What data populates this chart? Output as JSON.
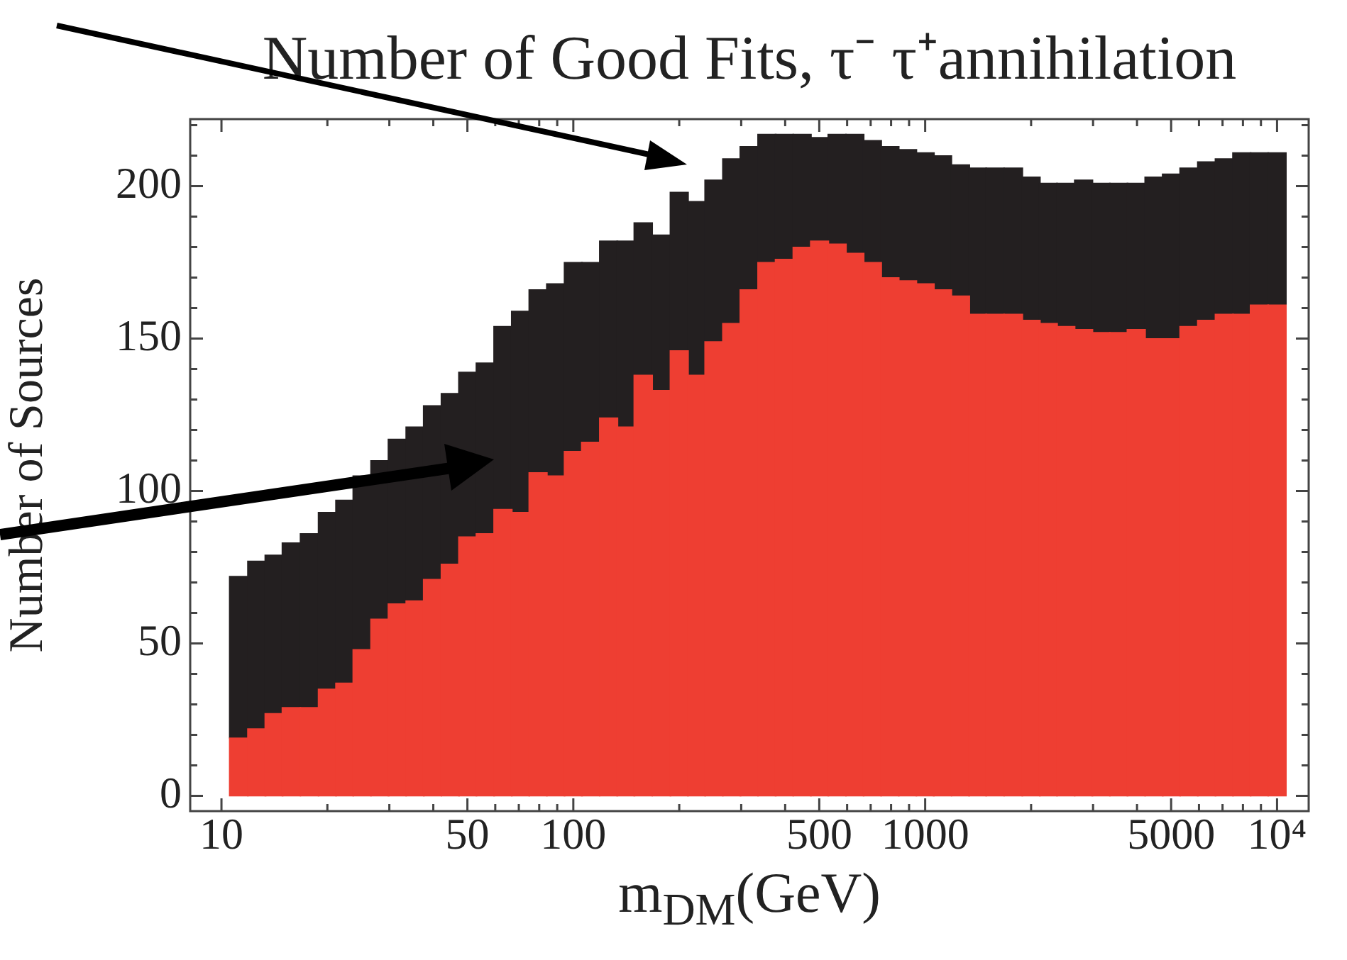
{
  "chart_data": {
    "type": "bar",
    "title": "Number of Good Fits, τ⁻ τ⁺annihilation",
    "xlabel": "m$_{DM}$(GeV)",
    "ylabel": "Number of Sources",
    "log": "x",
    "grid": false,
    "x": [
      11.2,
      12.6,
      14.1,
      15.8,
      17.8,
      20.0,
      22.4,
      25.1,
      28.2,
      31.6,
      35.5,
      39.8,
      44.7,
      50.1,
      56.2,
      63.1,
      70.8,
      79.4,
      89.1,
      100,
      112,
      126,
      141,
      158,
      178,
      200,
      224,
      251,
      282,
      316,
      355,
      398,
      447,
      501,
      562,
      631,
      708,
      794,
      891,
      1000,
      1120,
      1260,
      1410,
      1580,
      1780,
      2000,
      2240,
      2510,
      2820,
      3160,
      3550,
      3980,
      4470,
      5010,
      5620,
      6310,
      7080,
      7940,
      8910,
      10000
    ],
    "series": [
      {
        "color": "#ee3e32",
        "values": [
          19,
          22,
          27,
          29,
          29,
          35,
          37,
          48,
          58,
          63,
          64,
          71,
          76,
          85,
          86,
          94,
          93,
          106,
          105,
          113,
          116,
          124,
          121,
          138,
          133,
          146,
          138,
          149,
          155,
          166,
          175,
          176,
          180,
          182,
          181,
          178,
          175,
          170,
          169,
          168,
          166,
          164,
          158,
          158,
          158,
          156,
          155,
          154,
          153,
          152,
          152,
          153,
          150,
          150,
          154,
          156,
          158,
          158,
          161,
          161
        ]
      },
      {
        "color": "#231f20",
        "values": [
          53,
          55,
          52,
          54,
          57,
          58,
          60,
          57,
          52,
          54,
          57,
          57,
          56,
          54,
          56,
          60,
          66,
          60,
          63,
          62,
          59,
          58,
          61,
          50,
          51,
          52,
          57,
          53,
          54,
          47,
          42,
          41,
          37,
          34,
          36,
          39,
          40,
          43,
          43,
          43,
          44,
          43,
          48,
          48,
          48,
          47,
          46,
          47,
          49,
          49,
          49,
          48,
          53,
          54,
          52,
          52,
          51,
          53,
          50,
          50
        ]
      }
    ],
    "stacked": true,
    "xlim": [
      8.15,
      12300
    ],
    "xticks": [
      10,
      {
        "value": 20,
        "label": null
      },
      {
        "value": 30,
        "label": null
      },
      {
        "value": 40,
        "label": null
      },
      50,
      {
        "value": 60,
        "label": null
      },
      {
        "value": 70,
        "label": null
      },
      {
        "value": 80,
        "label": null
      },
      {
        "value": 90,
        "label": null
      },
      100,
      {
        "value": 200,
        "label": null
      },
      {
        "value": 300,
        "label": null
      },
      {
        "value": 400,
        "label": null
      },
      500,
      {
        "value": 600,
        "label": null
      },
      {
        "value": 700,
        "label": null
      },
      {
        "value": 800,
        "label": null
      },
      {
        "value": 900,
        "label": null
      },
      1000,
      {
        "value": 2000,
        "label": null
      },
      {
        "value": 3000,
        "label": null
      },
      {
        "value": 4000,
        "label": null
      },
      5000,
      {
        "value": 6000,
        "label": null
      },
      {
        "value": 7000,
        "label": null
      },
      {
        "value": 8000,
        "label": null
      },
      {
        "value": 9000,
        "label": null
      },
      {
        "value": 10000,
        "label": "10⁴"
      }
    ],
    "ylim": [
      -5,
      222
    ],
    "yticks": [
      0,
      {
        "value": 10,
        "label": null
      },
      {
        "value": 20,
        "label": null
      },
      {
        "value": 30,
        "label": null
      },
      {
        "value": 40,
        "label": null
      },
      50,
      {
        "value": 60,
        "label": null
      },
      {
        "value": 70,
        "label": null
      },
      {
        "value": 80,
        "label": null
      },
      {
        "value": 90,
        "label": null
      },
      100,
      {
        "value": 110,
        "label": null
      },
      {
        "value": 120,
        "label": null
      },
      {
        "value": 130,
        "label": null
      },
      {
        "value": 140,
        "label": null
      },
      150,
      {
        "value": 160,
        "label": null
      },
      {
        "value": 170,
        "label": null
      },
      {
        "value": 180,
        "label": null
      },
      {
        "value": 190,
        "label": null
      },
      200,
      {
        "value": 210,
        "label": null
      },
      {
        "value": 220,
        "label": null
      }
    ]
  }
}
